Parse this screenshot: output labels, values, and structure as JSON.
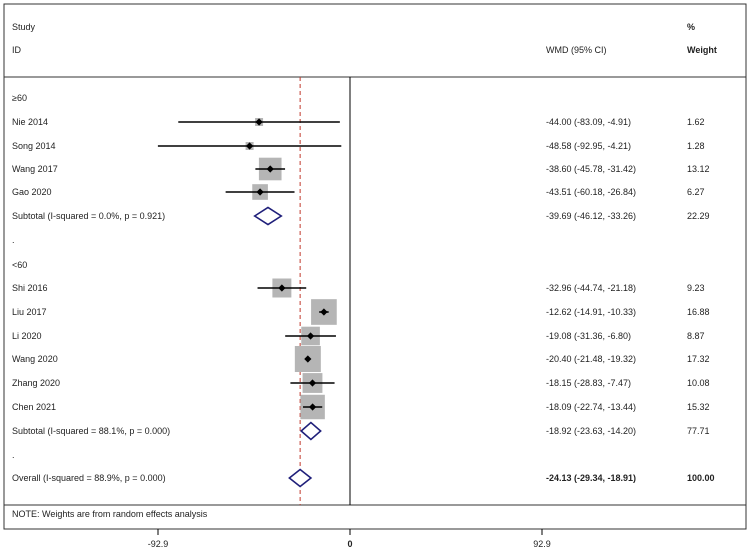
{
  "chart_data": {
    "type": "forest",
    "header": {
      "study_label_1": "Study",
      "study_label_2": "ID",
      "effect_label": "WMD (95% CI)",
      "weight_label_1": "%",
      "weight_label_2": "Weight"
    },
    "x_axis": {
      "min": -92.9,
      "max": 92.9,
      "ticks": [
        "-92.9",
        "0",
        "92.9"
      ],
      "reference_line": 0,
      "overall_effect_line": -24.13
    },
    "rows": [
      {
        "kind": "group",
        "label": "≥60"
      },
      {
        "kind": "study",
        "label": "Nie 2014",
        "est": -44.0,
        "lo": -83.09,
        "hi": -4.91,
        "ci_text": "-44.00 (-83.09, -4.91)",
        "weight": "1.62",
        "w": 1.62
      },
      {
        "kind": "study",
        "label": "Song 2014",
        "est": -48.58,
        "lo": -92.95,
        "hi": -4.21,
        "ci_text": "-48.58 (-92.95, -4.21)",
        "weight": "1.28",
        "w": 1.28
      },
      {
        "kind": "study",
        "label": "Wang 2017",
        "est": -38.6,
        "lo": -45.78,
        "hi": -31.42,
        "ci_text": "-38.60 (-45.78, -31.42)",
        "weight": "13.12",
        "w": 13.12
      },
      {
        "kind": "study",
        "label": "Gao 2020",
        "est": -43.51,
        "lo": -60.18,
        "hi": -26.84,
        "ci_text": "-43.51 (-60.18, -26.84)",
        "weight": "6.27",
        "w": 6.27
      },
      {
        "kind": "subtotal",
        "label": "Subtotal  (I-squared = 0.0%, p = 0.921)",
        "est": -39.69,
        "lo": -46.12,
        "hi": -33.26,
        "ci_text": "-39.69 (-46.12, -33.26)",
        "weight": "22.29"
      },
      {
        "kind": "dot",
        "label": "."
      },
      {
        "kind": "group",
        "label": "<60"
      },
      {
        "kind": "study",
        "label": "Shi 2016",
        "est": -32.96,
        "lo": -44.74,
        "hi": -21.18,
        "ci_text": "-32.96 (-44.74, -21.18)",
        "weight": "9.23",
        "w": 9.23
      },
      {
        "kind": "study",
        "label": "Liu 2017",
        "est": -12.62,
        "lo": -14.91,
        "hi": -10.33,
        "ci_text": "-12.62 (-14.91, -10.33)",
        "weight": "16.88",
        "w": 16.88
      },
      {
        "kind": "study",
        "label": "Li 2020",
        "est": -19.08,
        "lo": -31.36,
        "hi": -6.8,
        "ci_text": "-19.08 (-31.36, -6.80)",
        "weight": "8.87",
        "w": 8.87
      },
      {
        "kind": "study",
        "label": "Wang 2020",
        "est": -20.4,
        "lo": -21.48,
        "hi": -19.32,
        "ci_text": "-20.40 (-21.48, -19.32)",
        "weight": "17.32",
        "w": 17.32
      },
      {
        "kind": "study",
        "label": "Zhang 2020",
        "est": -18.15,
        "lo": -28.83,
        "hi": -7.47,
        "ci_text": "-18.15 (-28.83, -7.47)",
        "weight": "10.08",
        "w": 10.08
      },
      {
        "kind": "study",
        "label": "Chen 2021",
        "est": -18.09,
        "lo": -22.74,
        "hi": -13.44,
        "ci_text": "-18.09 (-22.74, -13.44)",
        "weight": "15.32",
        "w": 15.32
      },
      {
        "kind": "subtotal",
        "label": "Subtotal  (I-squared = 88.1%, p = 0.000)",
        "est": -18.92,
        "lo": -23.63,
        "hi": -14.2,
        "ci_text": "-18.92 (-23.63, -14.20)",
        "weight": "77.71"
      },
      {
        "kind": "dot",
        "label": "."
      },
      {
        "kind": "overall",
        "label": "Overall  (I-squared = 88.9%, p = 0.000)",
        "est": -24.13,
        "lo": -29.34,
        "hi": -18.91,
        "ci_text": "-24.13 (-29.34, -18.91)",
        "weight": "100.00"
      }
    ],
    "note": "NOTE: Weights are from random effects analysis",
    "colors": {
      "diamond": "#1f1f7a",
      "box": "#b5b5b5",
      "dash_line": "#c0392b",
      "line": "#000000"
    }
  }
}
